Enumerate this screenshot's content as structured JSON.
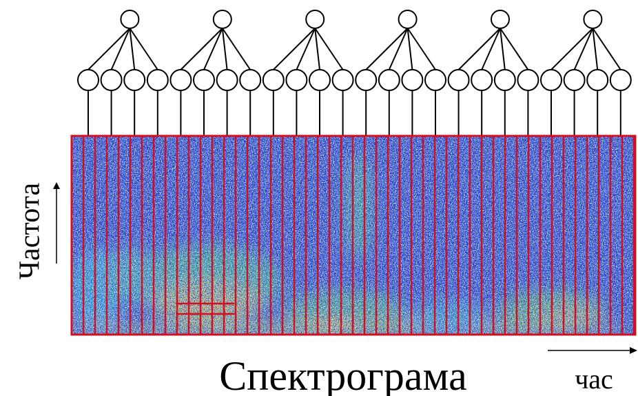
{
  "labels": {
    "frequency": "Частота",
    "title": "Спектрограма",
    "time": "час"
  }
}
